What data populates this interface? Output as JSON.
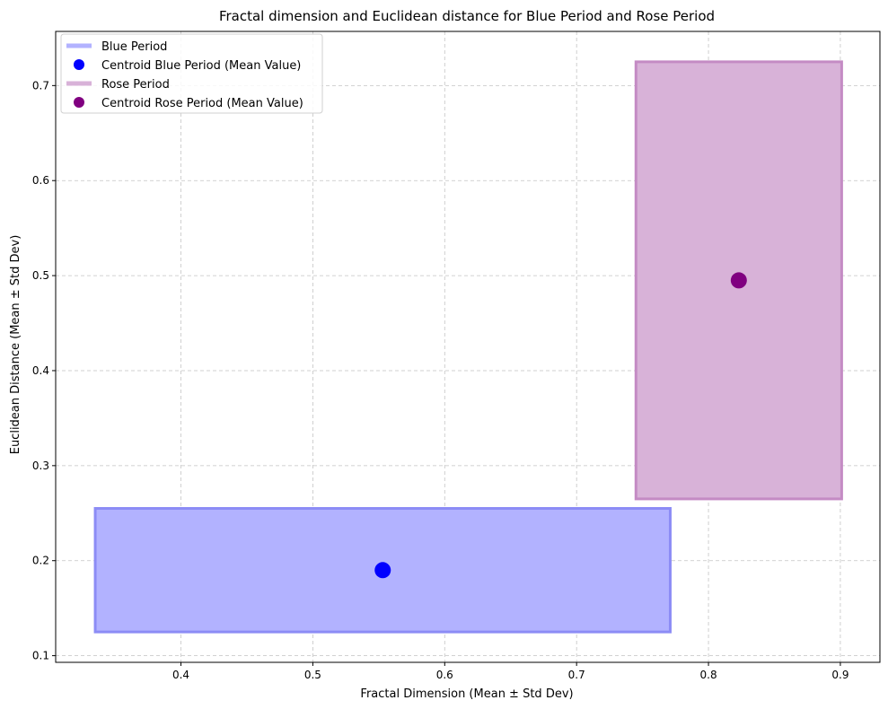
{
  "chart_data": {
    "type": "scatter",
    "title": "Fractal dimension and Euclidean distance for Blue Period and Rose Period",
    "xlabel": "Fractal Dimension (Mean ± Std Dev)",
    "ylabel": "Euclidean Distance (Mean ± Std Dev)",
    "xlim": [
      0.305,
      0.93
    ],
    "ylim": [
      0.093,
      0.757
    ],
    "xticks": [
      0.4,
      0.5,
      0.6,
      0.7,
      0.8,
      0.9
    ],
    "yticks": [
      0.1,
      0.2,
      0.3,
      0.4,
      0.5,
      0.6,
      0.7
    ],
    "grid": true,
    "legend_position": "top-left",
    "series": [
      {
        "name": "Blue Period",
        "centroid_name": "Centroid Blue Period (Mean Value)",
        "mean_x": 0.553,
        "mean_y": 0.19,
        "std_x": 0.218,
        "std_y": 0.065,
        "range_x": [
          0.335,
          0.771
        ],
        "range_y": [
          0.125,
          0.255
        ],
        "fill_color": "#b2b2ff",
        "edge_color": "#8c8cf5",
        "marker_color": "#0000ff"
      },
      {
        "name": "Rose Period",
        "centroid_name": "Centroid Rose Period (Mean Value)",
        "mean_x": 0.823,
        "mean_y": 0.495,
        "std_x": 0.078,
        "std_y": 0.23,
        "range_x": [
          0.745,
          0.901
        ],
        "range_y": [
          0.265,
          0.725
        ],
        "fill_color": "#d8b2d8",
        "edge_color": "#c48bc4",
        "marker_color": "#800080"
      }
    ]
  }
}
